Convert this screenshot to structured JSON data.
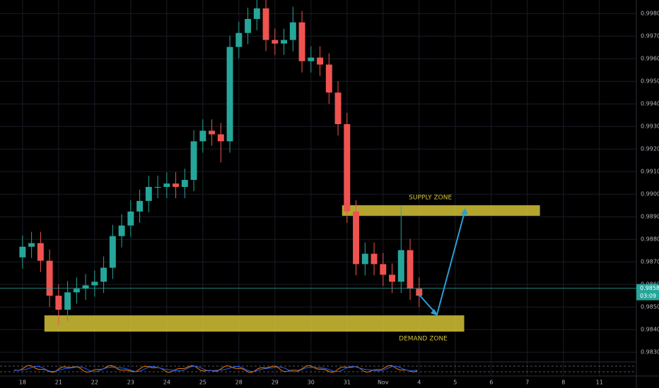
{
  "chart_data": {
    "type": "candlestick",
    "open": [
      0.9872,
      0.98767,
      0.98783,
      0.98705,
      0.9855,
      0.98488,
      0.98565,
      0.98581,
      0.98596,
      0.98612,
      0.98674,
      0.98814,
      0.98861,
      0.98923,
      0.9897,
      0.99032,
      0.99032,
      0.99047,
      0.99032,
      0.99063,
      0.99234,
      0.99281,
      0.99265,
      0.99234,
      0.99652,
      0.99714,
      0.99776,
      0.99823,
      0.99683,
      0.99667,
      0.99683,
      0.99761,
      0.99589,
      0.99605,
      0.99574,
      0.9945,
      0.9931,
      0.98923,
      0.9869,
      0.98736,
      0.9869,
      0.98643,
      0.98612,
      0.98752,
      0.98581
    ],
    "high": [
      0.98817,
      0.98833,
      0.98833,
      0.98755,
      0.986,
      0.98615,
      0.98631,
      0.98646,
      0.98662,
      0.98724,
      0.98864,
      0.98911,
      0.98973,
      0.9902,
      0.99082,
      0.99082,
      0.99097,
      0.99097,
      0.99113,
      0.99284,
      0.99331,
      0.99331,
      0.99315,
      0.99702,
      0.99764,
      0.99826,
      0.99876,
      0.99873,
      0.99733,
      0.99733,
      0.9983,
      0.99811,
      0.99655,
      0.99655,
      0.99624,
      0.995,
      0.9936,
      0.98973,
      0.98786,
      0.98786,
      0.9874,
      0.98693,
      0.98948,
      0.98802,
      0.98631
    ],
    "low": [
      0.9867,
      0.98717,
      0.98655,
      0.985,
      0.98419,
      0.98438,
      0.98515,
      0.98531,
      0.98546,
      0.98562,
      0.98624,
      0.98764,
      0.98811,
      0.98873,
      0.9892,
      0.98982,
      0.98982,
      0.98982,
      0.98982,
      0.99013,
      0.99184,
      0.99215,
      0.9914,
      0.99184,
      0.99602,
      0.99664,
      0.99726,
      0.99633,
      0.99617,
      0.99617,
      0.99633,
      0.99539,
      0.99539,
      0.99524,
      0.994,
      0.9926,
      0.98873,
      0.9864,
      0.9864,
      0.9864,
      0.98593,
      0.98562,
      0.98562,
      0.98531,
      0.985
    ],
    "close": [
      0.98767,
      0.98783,
      0.98705,
      0.9855,
      0.98488,
      0.98565,
      0.98581,
      0.98596,
      0.98612,
      0.98674,
      0.98814,
      0.98861,
      0.98923,
      0.9897,
      0.99032,
      0.99032,
      0.99047,
      0.99032,
      0.99063,
      0.99234,
      0.99281,
      0.99265,
      0.99234,
      0.99652,
      0.99714,
      0.99776,
      0.99823,
      0.99683,
      0.99667,
      0.99683,
      0.99761,
      0.99589,
      0.99605,
      0.99574,
      0.9945,
      0.9931,
      0.98923,
      0.9869,
      0.98736,
      0.9869,
      0.98643,
      0.98612,
      0.98752,
      0.98581,
      0.9855
    ],
    "up_color": "#26a69a",
    "down_color": "#ef5350",
    "ylim": [
      0.9826,
      0.9986
    ],
    "yticks": [
      {
        "value": 0.983,
        "label": "0.98300"
      },
      {
        "value": 0.984,
        "label": "0.98400"
      },
      {
        "value": 0.985,
        "label": "0.98500"
      },
      {
        "value": 0.986,
        "label": "0.98600"
      },
      {
        "value": 0.987,
        "label": "0.98700"
      },
      {
        "value": 0.988,
        "label": "0.98800"
      },
      {
        "value": 0.989,
        "label": "0.98900"
      },
      {
        "value": 0.99,
        "label": "0.99000"
      },
      {
        "value": 0.991,
        "label": "0.99100"
      },
      {
        "value": 0.992,
        "label": "0.99200"
      },
      {
        "value": 0.993,
        "label": "0.99300"
      },
      {
        "value": 0.994,
        "label": "0.99400"
      },
      {
        "value": 0.995,
        "label": "0.99500"
      },
      {
        "value": 0.996,
        "label": "0.99600"
      },
      {
        "value": 0.997,
        "label": "0.99700"
      },
      {
        "value": 0.998,
        "label": "0.99800"
      }
    ],
    "xlim": [
      -2.5,
      68.1
    ],
    "xticks": [
      {
        "value": 0,
        "label": "18"
      },
      {
        "value": 4,
        "label": "21"
      },
      {
        "value": 8,
        "label": "22"
      },
      {
        "value": 12,
        "label": "23"
      },
      {
        "value": 16,
        "label": "24"
      },
      {
        "value": 20,
        "label": "25"
      },
      {
        "value": 24,
        "label": "28"
      },
      {
        "value": 28,
        "label": "29"
      },
      {
        "value": 32,
        "label": "30"
      },
      {
        "value": 36,
        "label": "31"
      },
      {
        "value": 40,
        "label": "Nov"
      },
      {
        "value": 44,
        "label": "4"
      },
      {
        "value": 48,
        "label": "5"
      },
      {
        "value": 52,
        "label": "6"
      },
      {
        "value": 56,
        "label": "7"
      },
      {
        "value": 60,
        "label": "8"
      },
      {
        "value": 64,
        "label": "11"
      }
    ],
    "grid": true,
    "last_price": 0.98583,
    "countdown": "03:09",
    "last_price_color": "#26a69a",
    "zones": [
      {
        "label": "SUPPLY ZONE",
        "low": 0.98904,
        "high": 0.98951,
        "x": [
          35.45,
          57.4
        ],
        "label_position": "above",
        "color": "#d4c236"
      },
      {
        "label": "DEMAND ZONE",
        "low": 0.98391,
        "high": 0.98463,
        "x": [
          2.43,
          49.0
        ],
        "label_position": "below",
        "color": "#d4c236"
      }
    ]
  }
}
